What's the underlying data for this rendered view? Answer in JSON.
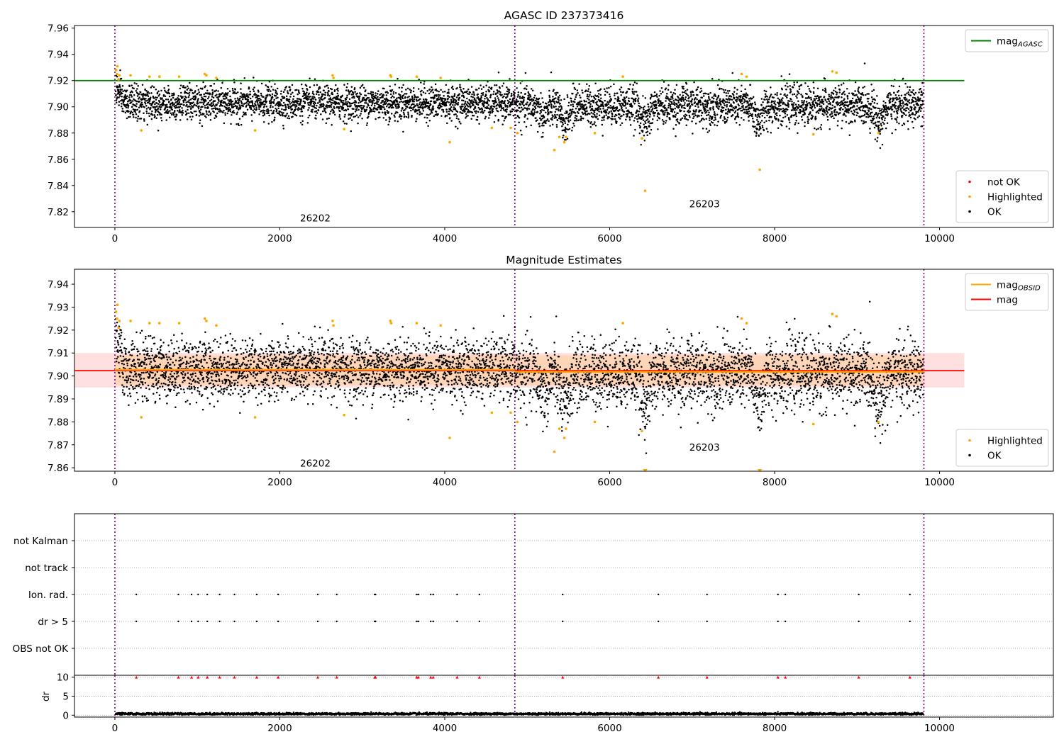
{
  "chart_data": [
    {
      "type": "scatter",
      "title": "AGASC ID 237373416",
      "xlim": [
        -490,
        11380
      ],
      "ylim": [
        7.808,
        7.962
      ],
      "x_ticks": [
        0,
        2000,
        4000,
        6000,
        8000,
        10000
      ],
      "y_ticks": [
        7.82,
        7.84,
        7.86,
        7.88,
        7.9,
        7.92,
        7.94,
        7.96
      ],
      "y_tick_decimals": 2,
      "obsid_boundaries": [
        0,
        4850,
        9810
      ],
      "obsid_labels": [
        {
          "text": "26202",
          "x": 2430,
          "y": 7.8125
        },
        {
          "text": "26203",
          "x": 7150,
          "y": 7.8235
        }
      ],
      "reference_lines": [
        {
          "name": "mag_AGASC",
          "y": 7.92,
          "x_range": [
            -490,
            10300
          ],
          "color": "#008000"
        }
      ],
      "point_series": [
        {
          "name": "not OK",
          "color": "#ff0000",
          "points": []
        },
        {
          "name": "Highlighted",
          "color": "#ffa500",
          "points": [
            [
              15,
              7.928
            ],
            [
              25,
              7.925
            ],
            [
              30,
              7.931
            ],
            [
              45,
              7.921
            ],
            [
              55,
              7.924
            ],
            [
              190,
              7.924
            ],
            [
              320,
              7.882
            ],
            [
              420,
              7.923
            ],
            [
              540,
              7.923
            ],
            [
              780,
              7.923
            ],
            [
              1090,
              7.925
            ],
            [
              1110,
              7.924
            ],
            [
              1230,
              7.922
            ],
            [
              1700,
              7.882
            ],
            [
              2640,
              7.924
            ],
            [
              2650,
              7.922
            ],
            [
              2780,
              7.883
            ],
            [
              3340,
              7.924
            ],
            [
              3350,
              7.923
            ],
            [
              3660,
              7.923
            ],
            [
              3950,
              7.922
            ],
            [
              4060,
              7.873
            ],
            [
              4570,
              7.884
            ],
            [
              4800,
              7.884
            ],
            [
              4880,
              7.88
            ],
            [
              5330,
              7.867
            ],
            [
              5390,
              7.877
            ],
            [
              5450,
              7.873
            ],
            [
              5470,
              7.877
            ],
            [
              5820,
              7.88
            ],
            [
              6160,
              7.923
            ],
            [
              6390,
              7.876
            ],
            [
              6430,
              7.836
            ],
            [
              7600,
              7.925
            ],
            [
              7660,
              7.923
            ],
            [
              7820,
              7.852
            ],
            [
              8470,
              7.879
            ],
            [
              8700,
              7.927
            ],
            [
              8750,
              7.926
            ],
            [
              9260,
              7.88
            ]
          ]
        },
        {
          "name": "OK",
          "color": "#000000",
          "points": []
        }
      ],
      "scatter_model": {
        "name": "OK",
        "x_range": [
          10,
          9800
        ],
        "count": 5200,
        "segments": [
          {
            "x0": 0,
            "x1": 4850,
            "center": 7.903,
            "spread": 0.0065
          },
          {
            "x0": 4850,
            "x1": 9810,
            "center": 7.901,
            "spread": 0.0075
          }
        ],
        "initial_peak": {
          "x1": 120,
          "center": 7.915
        },
        "dips": [
          [
            5200,
            7.893
          ],
          [
            5450,
            7.888
          ],
          [
            6430,
            7.888
          ],
          [
            7810,
            7.889
          ],
          [
            9270,
            7.889
          ]
        ]
      },
      "legends": [
        {
          "position": "upper right",
          "entries": [
            {
              "label": "mag",
              "subscript": "AGASC",
              "kind": "line",
              "color": "#008000"
            }
          ]
        },
        {
          "position": "lower right",
          "entries": [
            {
              "label": "not OK",
              "kind": "dot",
              "color": "#ff0000"
            },
            {
              "label": "Highlighted",
              "kind": "dot",
              "color": "#ffa500"
            },
            {
              "label": "OK",
              "kind": "dot",
              "color": "#000000"
            }
          ]
        }
      ]
    },
    {
      "type": "scatter",
      "title": "Magnitude Estimates",
      "xlim": [
        -490,
        11380
      ],
      "ylim": [
        7.8585,
        7.9465
      ],
      "x_ticks": [
        0,
        2000,
        4000,
        6000,
        8000,
        10000
      ],
      "y_ticks": [
        7.86,
        7.87,
        7.88,
        7.89,
        7.9,
        7.91,
        7.92,
        7.93,
        7.94
      ],
      "y_tick_decimals": 2,
      "obsid_boundaries": [
        0,
        4850,
        9810
      ],
      "obsid_labels": [
        {
          "text": "26202",
          "x": 2430,
          "y": 7.8605
        },
        {
          "text": "26203",
          "x": 7150,
          "y": 7.8675
        }
      ],
      "bands": [
        {
          "y0": 7.895,
          "y1": 7.91,
          "x_range": [
            -490,
            10300
          ],
          "color": "#ff0000",
          "opacity": 0.12
        },
        {
          "y0": 7.896,
          "y1": 7.909,
          "x_range": [
            0,
            9810
          ],
          "color": "#ffa500",
          "opacity": 0.18
        }
      ],
      "reference_lines": [
        {
          "name": "mag",
          "y": 7.9023,
          "x_range": [
            -490,
            10300
          ],
          "color": "#ff0000"
        }
      ],
      "step_lines": [
        {
          "name": "mag_OBSID",
          "color": "#ffa500",
          "segments": [
            {
              "x0": 0,
              "x1": 4850,
              "y": 7.9027
            },
            {
              "x0": 4850,
              "x1": 9810,
              "y": 7.9018
            }
          ]
        }
      ],
      "point_series": [
        {
          "name": "Highlighted",
          "color": "#ffa500",
          "points": [
            [
              15,
              7.928
            ],
            [
              25,
              7.925
            ],
            [
              30,
              7.931
            ],
            [
              45,
              7.921
            ],
            [
              55,
              7.924
            ],
            [
              190,
              7.924
            ],
            [
              320,
              7.882
            ],
            [
              420,
              7.923
            ],
            [
              540,
              7.923
            ],
            [
              780,
              7.923
            ],
            [
              1090,
              7.925
            ],
            [
              1110,
              7.924
            ],
            [
              1230,
              7.922
            ],
            [
              1700,
              7.882
            ],
            [
              2640,
              7.924
            ],
            [
              2650,
              7.922
            ],
            [
              2780,
              7.883
            ],
            [
              3340,
              7.924
            ],
            [
              3350,
              7.923
            ],
            [
              3660,
              7.923
            ],
            [
              3950,
              7.922
            ],
            [
              4060,
              7.873
            ],
            [
              4570,
              7.884
            ],
            [
              4800,
              7.884
            ],
            [
              4880,
              7.88
            ],
            [
              5330,
              7.867
            ],
            [
              5390,
              7.877
            ],
            [
              5450,
              7.873
            ],
            [
              5470,
              7.877
            ],
            [
              5820,
              7.88
            ],
            [
              6160,
              7.923
            ],
            [
              6390,
              7.876
            ],
            [
              6430,
              7.8585
            ],
            [
              7600,
              7.925
            ],
            [
              7660,
              7.923
            ],
            [
              7820,
              7.8585
            ],
            [
              8470,
              7.879
            ],
            [
              8700,
              7.927
            ],
            [
              8750,
              7.926
            ],
            [
              9260,
              7.88
            ]
          ]
        },
        {
          "name": "OK",
          "color": "#000000",
          "points": []
        }
      ],
      "scatter_model": {
        "name": "OK",
        "x_range": [
          10,
          9800
        ],
        "count": 5200,
        "segments": [
          {
            "x0": 0,
            "x1": 4850,
            "center": 7.903,
            "spread": 0.0065
          },
          {
            "x0": 4850,
            "x1": 9810,
            "center": 7.901,
            "spread": 0.0075
          }
        ],
        "initial_peak": {
          "x1": 120,
          "center": 7.915
        },
        "dips": [
          [
            5200,
            7.893
          ],
          [
            5450,
            7.888
          ],
          [
            6430,
            7.888
          ],
          [
            7810,
            7.889
          ],
          [
            9270,
            7.889
          ]
        ]
      },
      "legends": [
        {
          "position": "upper right",
          "entries": [
            {
              "label": "mag",
              "subscript": "OBSID",
              "kind": "line",
              "color": "#ffa500"
            },
            {
              "label": "mag",
              "kind": "line",
              "color": "#ff0000"
            }
          ]
        },
        {
          "position": "lower right",
          "entries": [
            {
              "label": "Highlighted",
              "kind": "dot",
              "color": "#ffa500"
            },
            {
              "label": "OK",
              "kind": "dot",
              "color": "#000000"
            }
          ]
        }
      ]
    },
    {
      "type": "scatter",
      "title": "",
      "xlim": [
        -490,
        11380
      ],
      "categories": [
        "OBS not OK",
        "dr > 5",
        "Ion. rad.",
        "not track",
        "not Kalman"
      ],
      "obsid_boundaries": [
        0,
        4850,
        9810
      ],
      "flag_series": [
        {
          "category": "Ion. rad.",
          "color": "#000000",
          "x": [
            260,
            770,
            930,
            1010,
            1120,
            1270,
            1450,
            1720,
            1980,
            2460,
            2690,
            3150,
            3160,
            3660,
            3680,
            3830,
            3860,
            4150,
            4420,
            5430,
            6590,
            7180,
            8040,
            8130,
            9020,
            9640
          ]
        },
        {
          "category": "dr > 5",
          "color": "#000000",
          "x": [
            260,
            770,
            930,
            1010,
            1120,
            1270,
            1450,
            1720,
            1980,
            2460,
            2690,
            3150,
            3160,
            3660,
            3680,
            3830,
            3860,
            4150,
            4420,
            5430,
            6590,
            7180,
            8040,
            8130,
            9020,
            9640
          ]
        }
      ]
    },
    {
      "type": "scatter",
      "title": "",
      "xlim": [
        -490,
        11380
      ],
      "ylim": [
        -0.5,
        10.5
      ],
      "ylabel": "dr",
      "x_ticks": [
        0,
        2000,
        4000,
        6000,
        8000,
        10000
      ],
      "y_ticks": [
        0,
        5,
        10
      ],
      "y_tick_decimals": 0,
      "obsid_boundaries": [
        0,
        4850,
        9810
      ],
      "clipped_markers": {
        "color": "#ff0000",
        "y": 10,
        "x": [
          260,
          770,
          930,
          1010,
          1120,
          1270,
          1450,
          1720,
          1980,
          2460,
          2690,
          3150,
          3160,
          3660,
          3680,
          3830,
          3860,
          4150,
          4420,
          5430,
          6590,
          7180,
          8040,
          8130,
          9020,
          9640
        ]
      },
      "scatter_model": {
        "name": "dr",
        "x_range": [
          10,
          9800
        ],
        "count": 3500,
        "center": 0.35,
        "spread": 0.15
      }
    }
  ]
}
